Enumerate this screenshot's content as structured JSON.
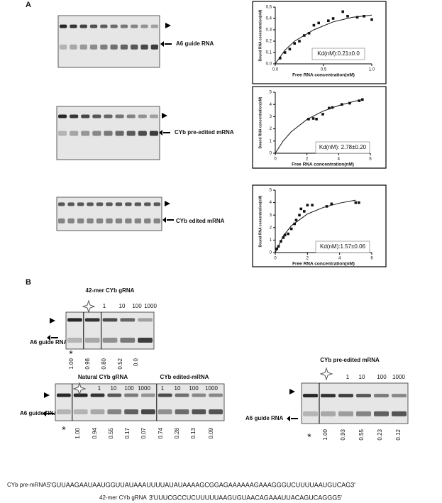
{
  "chart_data": [
    {
      "type": "scatter",
      "xlabel": "Free RNA concentration(nM)",
      "ylabel": "Bound RNA concentration(nM)",
      "annotation": "Kd(nM):0.21±0.0",
      "xlim": [
        0,
        1
      ],
      "xticks": [
        {
          "value": 0,
          "label": "0.0"
        },
        {
          "value": 0.5,
          "label": "0.5"
        },
        {
          "value": 1,
          "label": "1.0"
        }
      ],
      "ylim": [
        0,
        0.5
      ],
      "yticks": [
        {
          "value": 0,
          "label": "0.0"
        },
        {
          "value": 0.1,
          "label": "0.1"
        },
        {
          "value": 0.2,
          "label": "0.2"
        },
        {
          "value": 0.3,
          "label": "0.3"
        },
        {
          "value": 0.4,
          "label": "0.4"
        },
        {
          "value": 0.5,
          "label": "0.5"
        }
      ],
      "x": [
        0.05,
        0.1,
        0.15,
        0.2,
        0.25,
        0.3,
        0.35,
        0.4,
        0.45,
        0.55,
        0.6,
        0.7,
        0.75,
        0.85,
        0.92,
        1.0
      ],
      "values": [
        0.05,
        0.1,
        0.13,
        0.18,
        0.2,
        0.25,
        0.27,
        0.34,
        0.36,
        0.38,
        0.4,
        0.46,
        0.42,
        0.41,
        0.42,
        0.39
      ],
      "fit": {
        "x": [
          0,
          0.1,
          0.2,
          0.4,
          0.6,
          0.8,
          1.0
        ],
        "values": [
          0,
          0.12,
          0.2,
          0.3,
          0.37,
          0.41,
          0.43
        ]
      },
      "color": "#111111"
    },
    {
      "type": "scatter",
      "xlabel": "Free RNA concentration(nM)",
      "ylabel": "Bound RNA concentration(nM)",
      "annotation": "Kd(nM): 2.78±0.20",
      "xlim": [
        0,
        6
      ],
      "xticks": [
        0,
        2,
        4,
        6
      ],
      "ylim": [
        0,
        5
      ],
      "yticks": [
        0,
        1,
        2,
        3,
        4,
        5
      ],
      "x": [
        2.1,
        2.4,
        2.6,
        3.0,
        3.4,
        3.6,
        4.2,
        4.7,
        5.3,
        5.5
      ],
      "values": [
        2.8,
        2.85,
        2.8,
        3.2,
        3.7,
        3.75,
        4.0,
        4.1,
        4.3,
        4.4
      ],
      "fit": {
        "x": [
          0,
          0.5,
          1,
          2,
          3,
          4,
          5,
          5.5
        ],
        "values": [
          0,
          1.01,
          1.75,
          2.77,
          3.44,
          3.91,
          4.26,
          4.4
        ]
      },
      "color": "#111111"
    },
    {
      "type": "scatter",
      "xlabel": "Free RNA concentration(nM)",
      "ylabel": "Bound RNA concentration(nM)",
      "annotation": "Kd(nM):1.57±0.06",
      "xlim": [
        0,
        6
      ],
      "xticks": [
        0,
        2,
        4,
        6
      ],
      "ylim": [
        0,
        5
      ],
      "yticks": [
        0,
        1,
        2,
        3,
        4,
        5
      ],
      "x": [
        0.1,
        0.2,
        0.35,
        0.5,
        0.6,
        0.8,
        1.0,
        1.2,
        1.3,
        1.5,
        1.6,
        1.8,
        2.0,
        2.3,
        3.2,
        3.5,
        5.0,
        5.2
      ],
      "values": [
        0.3,
        0.5,
        0.9,
        1.2,
        1.4,
        1.5,
        1.9,
        2.3,
        2.6,
        3.0,
        3.5,
        3.3,
        3.8,
        3.8,
        3.7,
        3.9,
        4.0,
        4.0
      ],
      "fit": {
        "x": [
          0,
          0.5,
          1,
          2,
          3,
          4,
          5
        ],
        "values": [
          0,
          1.33,
          2.15,
          3.09,
          3.62,
          3.96,
          4.2
        ]
      },
      "color": "#111111"
    }
  ],
  "panel_a": {
    "letter": "A",
    "gel_labels": [
      "A6 guide RNA",
      "CYb pre-edited mRNA",
      "CYb edited mRNA"
    ]
  },
  "panel_b": {
    "letter": "B",
    "gel1": {
      "title": "42-mer CYb gRNA",
      "concentrations": [
        "1",
        "10",
        "100",
        "1000"
      ],
      "label": "A6 guide RNA",
      "asterisk": "*",
      "fractions": [
        "1.00",
        "0.98",
        "0.80",
        "0.52",
        "0.0"
      ]
    },
    "gel2": {
      "titles": [
        "Natural CYb gRNA",
        "CYb edited-mRNA"
      ],
      "concentrations": [
        "1",
        "10",
        "100",
        "1000",
        "1",
        "10",
        "100",
        "1000"
      ],
      "label": "A6 guide RNA",
      "asterisk": "*",
      "fractions": [
        "1.00",
        "0.94",
        "0.55",
        "0.17",
        "0.07",
        "0.74",
        "0.28",
        "0.13",
        "0.09"
      ]
    },
    "gel3": {
      "title": "CYb pre-edited mRNA",
      "concentrations": [
        "1",
        "10",
        "100",
        "1000"
      ],
      "label": "A6 guide RNA",
      "asterisk": "*",
      "fractions": [
        "1.00",
        "0.93",
        "0.55",
        "0.23",
        "0.12"
      ]
    }
  },
  "sequences": [
    {
      "label": "CYb pre-mRNA",
      "sequence": "5'GUUAAGAAUAAUGGUUAUAAAUUUUAUAUAAAAGCGGAGAAAAAAGAAAGGGUCUUUUAAUGUCAG3'"
    },
    {
      "label": "42-mer CYb gRNA",
      "sequence": "3'UUUCGCCUCUUUUUAAGUGUAACAGAAAUUACAGUCAGGG5'"
    }
  ]
}
